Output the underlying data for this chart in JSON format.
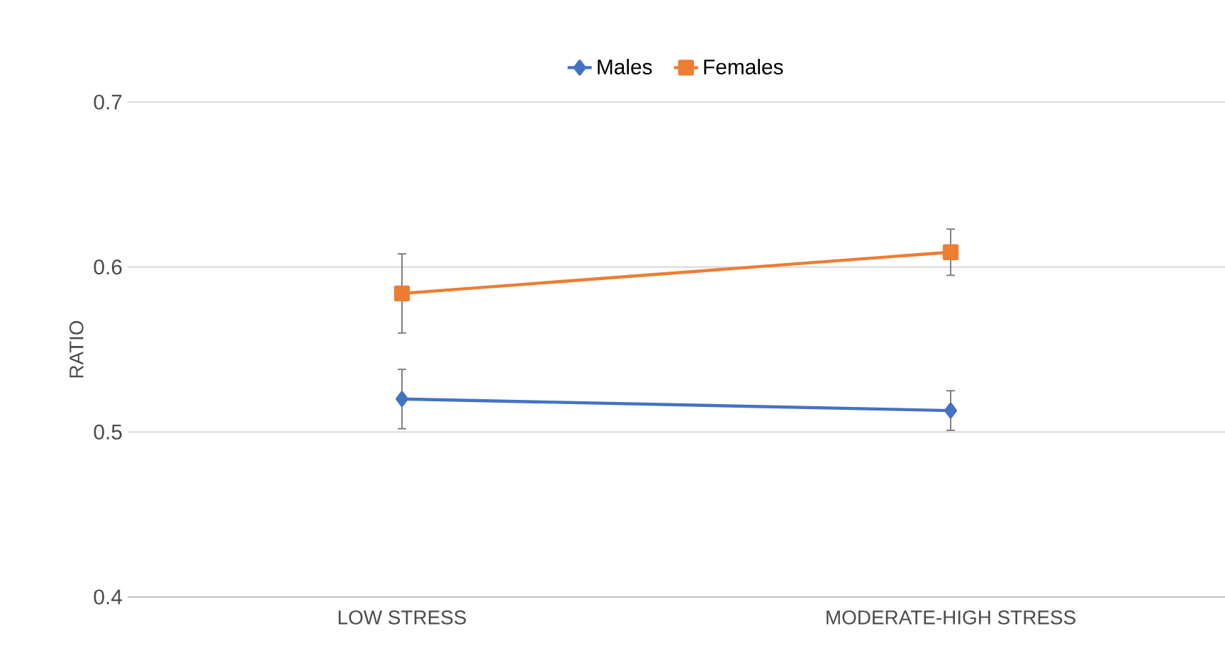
{
  "chart_data": {
    "type": "line",
    "ylabel": "RATIO",
    "categories": [
      "LOW STRESS",
      "MODERATE-HIGH STRESS"
    ],
    "series": [
      {
        "name": "Males",
        "color": "#4472c4",
        "marker": "diamond",
        "values": [
          0.52,
          0.513
        ],
        "errors": [
          0.018,
          0.012
        ]
      },
      {
        "name": "Females",
        "color": "#ed7d31",
        "marker": "square",
        "values": [
          0.584,
          0.609
        ],
        "errors": [
          0.024,
          0.014
        ]
      }
    ],
    "ylim": [
      0.4,
      0.7
    ],
    "yticks": [
      0.4,
      0.5,
      0.6,
      0.7
    ],
    "grid": "y",
    "legend": "top",
    "line_style": "solid"
  }
}
